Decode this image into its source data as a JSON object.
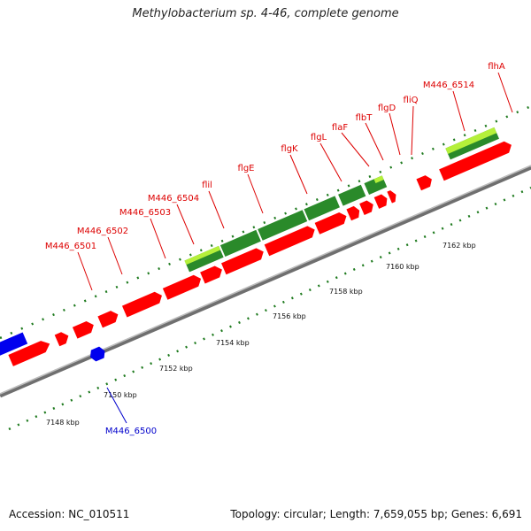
{
  "title": "Methylobacterium sp. 4-46, complete genome",
  "footer": {
    "accession": "Accession: NC_010511",
    "summary": "Topology: circular; Length: 7,659,055 bp; Genes: 6,691"
  },
  "ticks": [
    {
      "label": "7148 kbp",
      "pos": 0
    },
    {
      "label": "7150 kbp",
      "pos": 1
    },
    {
      "label": "7152 kbp",
      "pos": 2
    },
    {
      "label": "7154 kbp",
      "pos": 3
    },
    {
      "label": "7156 kbp",
      "pos": 4
    },
    {
      "label": "7158 kbp",
      "pos": 5
    },
    {
      "label": "7160 kbp",
      "pos": 6
    },
    {
      "label": "7162 kbp",
      "pos": 7
    }
  ],
  "genes": [
    {
      "label": "M446_6500",
      "color": "#0000cc"
    },
    {
      "label": "M446_6501",
      "color": "#dd0000"
    },
    {
      "label": "M446_6502",
      "color": "#dd0000"
    },
    {
      "label": "M446_6503",
      "color": "#dd0000"
    },
    {
      "label": "M446_6504",
      "color": "#dd0000"
    },
    {
      "label": "flil",
      "color": "#dd0000"
    },
    {
      "label": "flgE",
      "color": "#dd0000"
    },
    {
      "label": "flgK",
      "color": "#dd0000"
    },
    {
      "label": "flgL",
      "color": "#dd0000"
    },
    {
      "label": "flaF",
      "color": "#dd0000"
    },
    {
      "label": "flbT",
      "color": "#dd0000"
    },
    {
      "label": "flgD",
      "color": "#dd0000"
    },
    {
      "label": "fliQ",
      "color": "#dd0000"
    },
    {
      "label": "M446_6514",
      "color": "#dd0000"
    },
    {
      "label": "flhA",
      "color": "#dd0000"
    }
  ],
  "colors": {
    "cds_forward": "#ff0000",
    "cds_reverse": "#0000ee",
    "operon_dark": "#2a8a2a",
    "operon_light": "#b5f03a",
    "backbone": "#8a8a8a",
    "tick_green": "#1e7a1e"
  }
}
